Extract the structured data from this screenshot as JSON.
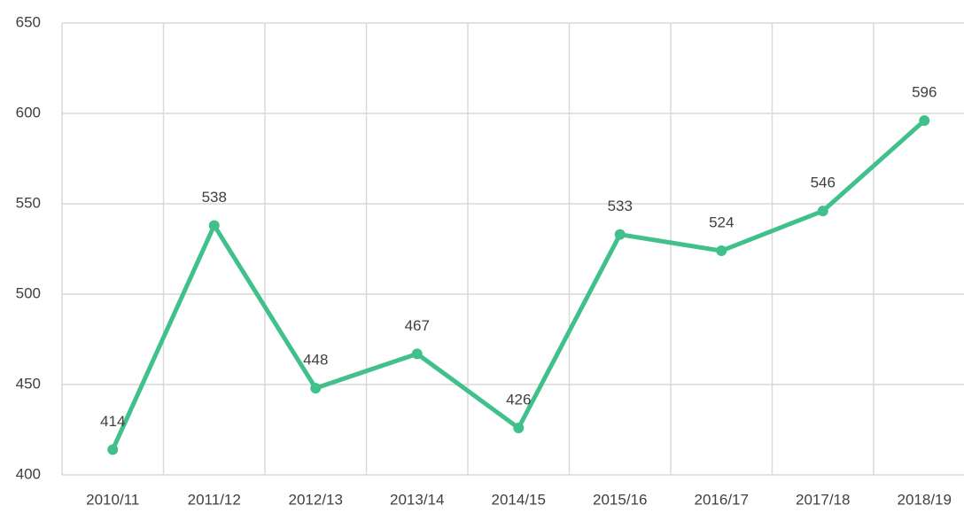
{
  "chart_data": {
    "type": "line",
    "categories": [
      "2010/11",
      "2011/12",
      "2012/13",
      "2013/14",
      "2014/15",
      "2015/16",
      "2016/17",
      "2017/18",
      "2018/19"
    ],
    "values": [
      414,
      538,
      448,
      467,
      426,
      533,
      524,
      546,
      596
    ],
    "color": "#40c08a",
    "ylim": [
      400,
      650
    ],
    "yticks": [
      400,
      450,
      500,
      550,
      600,
      650
    ],
    "grid": true
  }
}
